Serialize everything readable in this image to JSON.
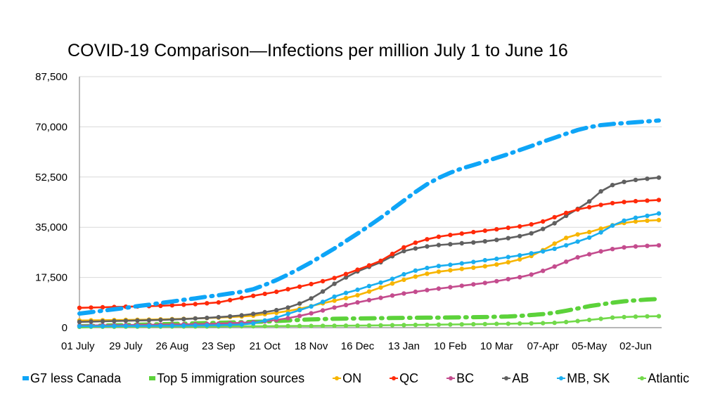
{
  "chart_data": {
    "type": "line",
    "title": "COVID-19 Comparison—Infections per million July 1 to June 16",
    "xlabel": "",
    "ylabel": "",
    "ylim": [
      0,
      87500
    ],
    "yticks": [
      "0",
      "17,500",
      "35,000",
      "52,500",
      "70,000",
      "87,500"
    ],
    "ytick_values": [
      0,
      17500,
      35000,
      52500,
      70000,
      87500
    ],
    "xticks": [
      "01 July",
      "29 July",
      "26 Aug",
      "23 Sep",
      "21 Oct",
      "18 Nov",
      "16 Dec",
      "13 Jan",
      "10 Feb",
      "10 Mar",
      "07-Apr",
      "05-May",
      "02-Jun"
    ],
    "xtick_index": [
      0,
      4,
      8,
      12,
      16,
      20,
      24,
      28,
      32,
      36,
      40,
      44,
      48
    ],
    "grid": true,
    "legend_position": "bottom",
    "n_points": 51,
    "x_interval": "weekly",
    "series": [
      {
        "name": "G7 less Canada",
        "color": "#0ea5f7",
        "style": "dashdot",
        "markers": false,
        "values": [
          4900,
          5400,
          5900,
          6400,
          6900,
          7500,
          8000,
          8600,
          9100,
          9700,
          10200,
          10800,
          11300,
          11900,
          12500,
          13400,
          14900,
          16600,
          18500,
          20600,
          22800,
          25200,
          27600,
          30200,
          32800,
          35500,
          38300,
          41300,
          44300,
          47300,
          50000,
          52200,
          54000,
          55500,
          56700,
          57900,
          59200,
          60500,
          61900,
          63300,
          64800,
          66200,
          67600,
          68900,
          69900,
          70600,
          71000,
          71300,
          71600,
          71900,
          72200
        ]
      },
      {
        "name": "Top 5 immigration sources",
        "color": "#5cd23a",
        "style": "dashdot",
        "markers": false,
        "values": [
          500,
          600,
          700,
          800,
          900,
          1000,
          1100,
          1200,
          1300,
          1400,
          1500,
          1600,
          1700,
          1800,
          1900,
          2000,
          2100,
          2300,
          2500,
          2700,
          2900,
          3000,
          3100,
          3150,
          3200,
          3250,
          3300,
          3350,
          3400,
          3450,
          3500,
          3500,
          3550,
          3600,
          3650,
          3700,
          3800,
          3900,
          4100,
          4400,
          4700,
          5200,
          5900,
          6700,
          7500,
          8100,
          8700,
          9200,
          9500,
          9800,
          10000
        ]
      },
      {
        "name": "ON",
        "color": "#f7b500",
        "style": "solid",
        "markers": true,
        "values": [
          2500,
          2550,
          2600,
          2650,
          2700,
          2750,
          2800,
          2900,
          3000,
          3100,
          3200,
          3350,
          3500,
          3700,
          3900,
          4200,
          4700,
          5200,
          5800,
          6600,
          7500,
          8500,
          9400,
          10300,
          11300,
          12600,
          14000,
          15400,
          16700,
          17800,
          18800,
          19500,
          20000,
          20500,
          20900,
          21400,
          22000,
          22800,
          23800,
          25000,
          27000,
          29300,
          31300,
          32500,
          33300,
          34500,
          35700,
          36500,
          37000,
          37300,
          37500
        ]
      },
      {
        "name": "QC",
        "color": "#ff2a0a",
        "style": "solid",
        "markers": true,
        "values": [
          6900,
          7000,
          7100,
          7200,
          7300,
          7400,
          7500,
          7600,
          7800,
          8000,
          8200,
          8500,
          8800,
          9600,
          10400,
          11100,
          11800,
          12500,
          13400,
          14300,
          15200,
          16200,
          17300,
          18700,
          20200,
          21700,
          23300,
          25700,
          28000,
          29600,
          30800,
          31700,
          32300,
          32800,
          33300,
          33800,
          34300,
          34800,
          35300,
          36000,
          37000,
          38500,
          40000,
          41200,
          42000,
          42800,
          43400,
          43800,
          44100,
          44300,
          44500
        ]
      },
      {
        "name": "BC",
        "color": "#c44c8e",
        "style": "solid",
        "markers": true,
        "values": [
          700,
          750,
          800,
          850,
          900,
          950,
          1000,
          1050,
          1100,
          1150,
          1200,
          1300,
          1400,
          1550,
          1700,
          1900,
          2200,
          2700,
          3300,
          4100,
          5000,
          6000,
          7000,
          7900,
          8800,
          9600,
          10400,
          11200,
          11900,
          12500,
          13100,
          13600,
          14100,
          14600,
          15100,
          15600,
          16200,
          16900,
          17600,
          18500,
          19800,
          21300,
          23000,
          24500,
          25600,
          26600,
          27400,
          28000,
          28300,
          28500,
          28700
        ]
      },
      {
        "name": "AB",
        "color": "#606060",
        "style": "solid",
        "markers": true,
        "values": [
          2000,
          2100,
          2200,
          2300,
          2400,
          2500,
          2600,
          2700,
          2850,
          3000,
          3200,
          3400,
          3650,
          3950,
          4300,
          4800,
          5400,
          6100,
          7000,
          8400,
          10200,
          12600,
          15300,
          17500,
          19600,
          21200,
          22800,
          24900,
          26700,
          27600,
          28300,
          28800,
          29100,
          29400,
          29700,
          30100,
          30600,
          31200,
          31900,
          32900,
          34400,
          36400,
          39000,
          41400,
          44000,
          47500,
          49700,
          50800,
          51500,
          51900,
          52300
        ]
      },
      {
        "name": "MB, SK",
        "color": "#1aaeef",
        "style": "solid",
        "markers": true,
        "values": [
          500,
          520,
          540,
          560,
          580,
          600,
          620,
          650,
          680,
          720,
          760,
          800,
          860,
          950,
          1100,
          1500,
          2500,
          3500,
          4800,
          6100,
          7400,
          9000,
          10800,
          12100,
          13200,
          14500,
          15700,
          17000,
          18600,
          19900,
          20800,
          21500,
          21900,
          22400,
          22900,
          23500,
          24000,
          24600,
          25200,
          25900,
          26600,
          27500,
          28700,
          30000,
          31400,
          33200,
          35600,
          37300,
          38300,
          39000,
          39800
        ]
      },
      {
        "name": "Atlantic",
        "color": "#72d94a",
        "style": "solid",
        "markers": true,
        "values": [
          300,
          310,
          320,
          330,
          340,
          350,
          360,
          370,
          380,
          390,
          400,
          420,
          440,
          460,
          480,
          500,
          520,
          540,
          560,
          580,
          600,
          630,
          660,
          690,
          720,
          760,
          800,
          850,
          900,
          950,
          1000,
          1050,
          1100,
          1150,
          1200,
          1260,
          1320,
          1380,
          1440,
          1500,
          1560,
          1700,
          1950,
          2300,
          2700,
          3100,
          3500,
          3700,
          3850,
          3950,
          4000
        ]
      }
    ]
  }
}
